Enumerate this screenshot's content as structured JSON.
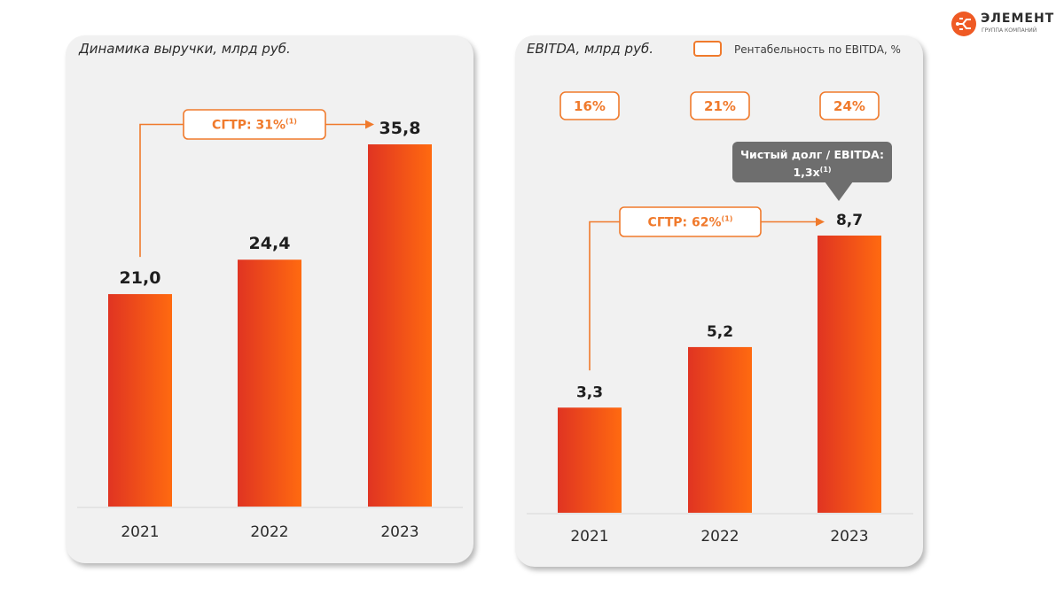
{
  "logo": {
    "name": "ЭЛЕМЕНТ",
    "subtitle": "ГРУППА КОМПАНИЙ"
  },
  "colors": {
    "bar_start": "#e03422",
    "bar_end": "#ff6a10",
    "accent": "#f07a2c",
    "callout_bg": "#6e6e6e"
  },
  "legend": {
    "label": "Рентабельность по EBITDA, %"
  },
  "callout": {
    "line1": "Чистый долг / EBITDA:",
    "line2": "1,3x",
    "sup": "(1)"
  },
  "chart_data": [
    {
      "type": "bar",
      "title": "Динамика выручки, млрд руб.",
      "categories": [
        "2021",
        "2022",
        "2023"
      ],
      "values": [
        21.0,
        24.4,
        35.8
      ],
      "value_labels": [
        "21,0",
        "24,4",
        "35,8"
      ],
      "ylim": [
        0,
        35.8
      ],
      "cagr": {
        "label": "СГТР: 31%",
        "sup": "(1)",
        "from": "2021",
        "to": "2023"
      }
    },
    {
      "type": "bar",
      "title": "EBITDA, млрд руб.",
      "categories": [
        "2021",
        "2022",
        "2023"
      ],
      "values": [
        3.3,
        5.2,
        8.7
      ],
      "value_labels": [
        "3,3",
        "5,2",
        "8,7"
      ],
      "ylim": [
        0,
        8.7
      ],
      "margins": [
        "16%",
        "21%",
        "24%"
      ],
      "cagr": {
        "label": "СГТР: 62%",
        "sup": "(1)",
        "from": "2021",
        "to": "2023"
      }
    }
  ]
}
